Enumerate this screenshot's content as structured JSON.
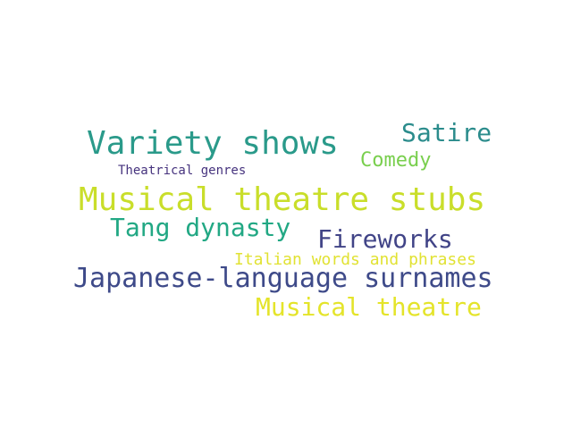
{
  "words": [
    {
      "text": "Variety shows",
      "color": "#2a9a8a"
    },
    {
      "text": "Satire",
      "color": "#2b8c8c"
    },
    {
      "text": "Comedy",
      "color": "#79cf4e"
    },
    {
      "text": "Theatrical genres",
      "color": "#46337e"
    },
    {
      "text": "Musical theatre stubs",
      "color": "#c9de2a"
    },
    {
      "text": "Tang dynasty",
      "color": "#22a884"
    },
    {
      "text": "Fireworks",
      "color": "#414487"
    },
    {
      "text": "Italian words and phrases",
      "color": "#e1e233"
    },
    {
      "text": "Japanese-language surnames",
      "color": "#3e4a89"
    },
    {
      "text": "Musical theatre",
      "color": "#e4e42a"
    }
  ]
}
